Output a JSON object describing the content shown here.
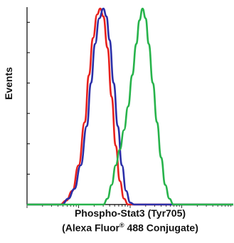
{
  "chart_data": {
    "type": "line",
    "xlabel_line1": "Phospho-Stat3 (Tyr705)",
    "xlabel_line2_pre": "(Alexa Fluor",
    "xlabel_line2_sup": "®",
    "xlabel_line2_post": " 488 Conjugate)",
    "ylabel": "Events",
    "xscale": "log",
    "grid": false,
    "series": [
      {
        "color": "#e8211d",
        "points": [
          [
            0.0,
            0.0
          ],
          [
            0.16,
            0.0
          ],
          [
            0.19,
            0.02
          ],
          [
            0.22,
            0.07
          ],
          [
            0.25,
            0.2
          ],
          [
            0.28,
            0.42
          ],
          [
            0.3,
            0.66
          ],
          [
            0.32,
            0.85
          ],
          [
            0.34,
            0.97
          ],
          [
            0.355,
            1.0
          ],
          [
            0.37,
            0.96
          ],
          [
            0.39,
            0.8
          ],
          [
            0.41,
            0.55
          ],
          [
            0.43,
            0.3
          ],
          [
            0.45,
            0.12
          ],
          [
            0.47,
            0.03
          ],
          [
            0.49,
            0.0
          ],
          [
            1.0,
            0.0
          ]
        ]
      },
      {
        "color": "#2b2fa8",
        "points": [
          [
            0.0,
            0.0
          ],
          [
            0.17,
            0.0
          ],
          [
            0.2,
            0.03
          ],
          [
            0.23,
            0.08
          ],
          [
            0.26,
            0.2
          ],
          [
            0.29,
            0.4
          ],
          [
            0.31,
            0.62
          ],
          [
            0.33,
            0.82
          ],
          [
            0.35,
            0.95
          ],
          [
            0.37,
            1.0
          ],
          [
            0.385,
            0.96
          ],
          [
            0.4,
            0.84
          ],
          [
            0.42,
            0.62
          ],
          [
            0.44,
            0.4
          ],
          [
            0.46,
            0.2
          ],
          [
            0.48,
            0.07
          ],
          [
            0.5,
            0.01
          ],
          [
            0.52,
            0.0
          ],
          [
            1.0,
            0.0
          ]
        ]
      },
      {
        "color": "#27b34b",
        "points": [
          [
            0.0,
            0.0
          ],
          [
            0.37,
            0.0
          ],
          [
            0.39,
            0.03
          ],
          [
            0.41,
            0.1
          ],
          [
            0.43,
            0.2
          ],
          [
            0.45,
            0.28
          ],
          [
            0.47,
            0.38
          ],
          [
            0.49,
            0.5
          ],
          [
            0.51,
            0.66
          ],
          [
            0.53,
            0.82
          ],
          [
            0.545,
            0.94
          ],
          [
            0.56,
            1.0
          ],
          [
            0.575,
            0.95
          ],
          [
            0.59,
            0.82
          ],
          [
            0.61,
            0.62
          ],
          [
            0.63,
            0.42
          ],
          [
            0.65,
            0.24
          ],
          [
            0.67,
            0.1
          ],
          [
            0.69,
            0.03
          ],
          [
            0.71,
            0.0
          ],
          [
            1.0,
            0.0
          ]
        ]
      }
    ]
  }
}
